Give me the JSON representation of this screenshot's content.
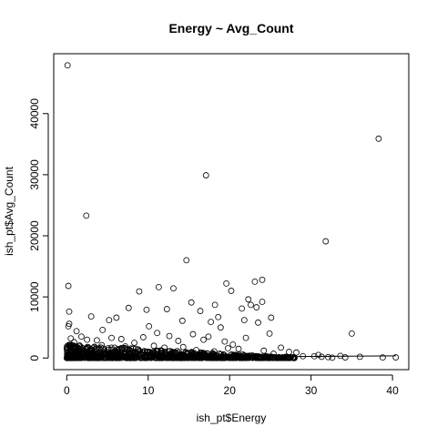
{
  "chart_data": {
    "type": "scatter",
    "title": "Energy ~ Avg_Count",
    "xlabel": "ish_pt$Energy",
    "ylabel": "ish_pt$Avg_Count",
    "xlim": [
      -1.6,
      42
    ],
    "ylim": [
      -1900,
      49800
    ],
    "x_ticks": [
      0,
      10,
      20,
      30,
      40
    ],
    "y_ticks": [
      0,
      10000,
      20000,
      30000,
      40000
    ],
    "grid": false,
    "legend": "none",
    "points": [
      [
        0.1,
        47900
      ],
      [
        0.2,
        11800
      ],
      [
        2.4,
        23300
      ],
      [
        17.1,
        29900
      ],
      [
        38.3,
        35900
      ],
      [
        31.8,
        19100
      ],
      [
        14.7,
        16000
      ],
      [
        19.6,
        12200
      ],
      [
        20.2,
        11000
      ],
      [
        23.1,
        12500
      ],
      [
        24.0,
        12800
      ],
      [
        11.3,
        11600
      ],
      [
        13.1,
        11400
      ],
      [
        8.9,
        10900
      ],
      [
        0.3,
        7600
      ],
      [
        3.0,
        6800
      ],
      [
        0.2,
        5200
      ],
      [
        0.3,
        5600
      ],
      [
        22.3,
        9600
      ],
      [
        22.6,
        8700
      ],
      [
        23.3,
        8300
      ],
      [
        24.0,
        9200
      ],
      [
        18.2,
        8700
      ],
      [
        21.5,
        8100
      ],
      [
        16.4,
        7700
      ],
      [
        7.6,
        8200
      ],
      [
        9.8,
        7900
      ],
      [
        12.3,
        8000
      ],
      [
        15.3,
        9100
      ],
      [
        25.1,
        6600
      ],
      [
        23.5,
        5800
      ],
      [
        24.9,
        4000
      ],
      [
        35.0,
        4000
      ],
      [
        21.8,
        6200
      ],
      [
        18.6,
        6700
      ],
      [
        17.7,
        5900
      ],
      [
        18.9,
        5000
      ],
      [
        14.2,
        6100
      ],
      [
        10.1,
        5200
      ],
      [
        6.1,
        6600
      ],
      [
        5.2,
        6200
      ],
      [
        4.4,
        4600
      ],
      [
        1.2,
        4400
      ],
      [
        1.8,
        3500
      ],
      [
        2.5,
        3000
      ],
      [
        3.7,
        2900
      ],
      [
        5.5,
        3300
      ],
      [
        6.7,
        3100
      ],
      [
        8.3,
        2500
      ],
      [
        9.4,
        3400
      ],
      [
        11.1,
        4100
      ],
      [
        12.6,
        3600
      ],
      [
        13.7,
        2800
      ],
      [
        15.5,
        3900
      ],
      [
        16.8,
        3000
      ],
      [
        17.4,
        3500
      ],
      [
        19.4,
        2700
      ],
      [
        20.4,
        2200
      ],
      [
        21.1,
        1500
      ],
      [
        22.0,
        3300
      ],
      [
        24.2,
        1200
      ],
      [
        26.3,
        1700
      ],
      [
        27.3,
        1000
      ],
      [
        28.2,
        900
      ],
      [
        30.4,
        300
      ],
      [
        31.3,
        200
      ],
      [
        32.1,
        150
      ],
      [
        33.6,
        350
      ],
      [
        34.2,
        100
      ],
      [
        40.4,
        100
      ],
      [
        3.4,
        1800
      ],
      [
        4.3,
        2100
      ],
      [
        7.2,
        1900
      ],
      [
        8.8,
        1400
      ],
      [
        10.7,
        2000
      ],
      [
        12.0,
        1700
      ],
      [
        14.3,
        1800
      ],
      [
        15.9,
        1300
      ],
      [
        18.1,
        1100
      ],
      [
        19.8,
        1600
      ],
      [
        0.9,
        2600
      ],
      [
        1.5,
        1200
      ],
      [
        2.2,
        900
      ],
      [
        5.9,
        1000
      ],
      [
        9.1,
        600
      ],
      [
        13.2,
        700
      ],
      [
        16.4,
        500
      ],
      [
        21.6,
        600
      ],
      [
        25.4,
        700
      ],
      [
        29.0,
        300
      ],
      [
        0.5,
        3200
      ],
      [
        0.7,
        2000
      ],
      [
        4.8,
        800
      ],
      [
        6.9,
        400
      ],
      [
        11.5,
        500
      ],
      [
        17.6,
        300
      ],
      [
        22.8,
        400
      ],
      [
        26.9,
        200
      ],
      [
        30.9,
        500
      ],
      [
        36.0,
        200
      ],
      [
        1.0,
        500
      ],
      [
        3.0,
        400
      ],
      [
        7.8,
        300
      ],
      [
        10.3,
        200
      ],
      [
        14.9,
        200
      ],
      [
        19.0,
        150
      ],
      [
        23.7,
        100
      ],
      [
        27.8,
        80
      ],
      [
        32.6,
        60
      ],
      [
        38.8,
        90
      ]
    ],
    "dense_band": {
      "x_from": 0,
      "x_to": 28,
      "y_at_x_start": 2200,
      "y_at_x_end": 0,
      "count": 900
    },
    "trend_line": {
      "x": [
        0,
        40.4
      ],
      "y": [
        0,
        350
      ]
    }
  }
}
